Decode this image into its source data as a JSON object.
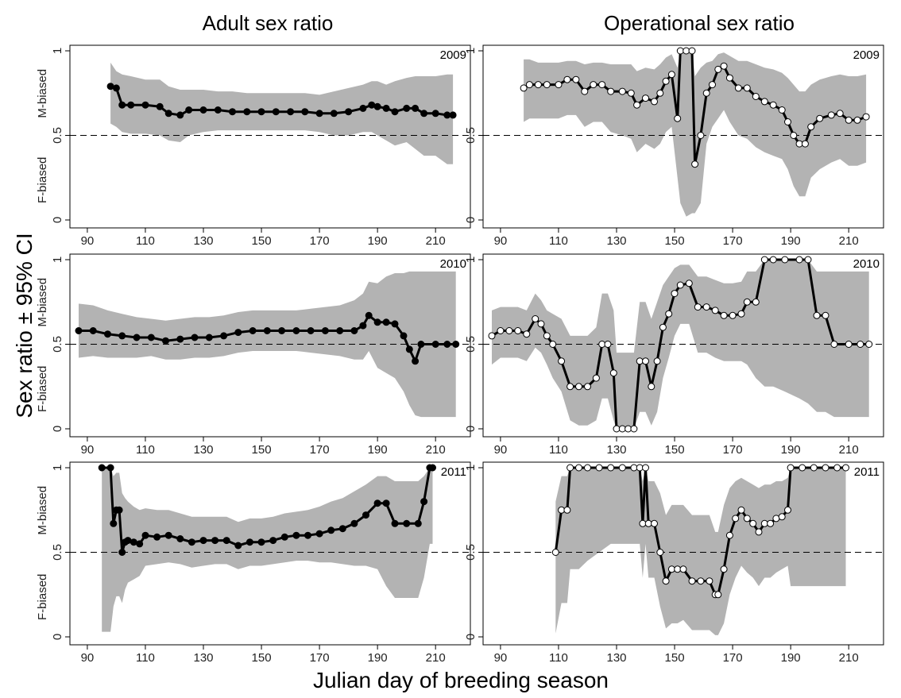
{
  "figure": {
    "col_titles": [
      "Adult sex ratio",
      "Operational sex ratio"
    ],
    "ylabel": "Sex ratio ± 95% CI",
    "xlabel": "Julian day of breeding season",
    "band_labels": {
      "upper": "M-biased",
      "lower": "F-biased"
    }
  },
  "chart_data": [
    {
      "type": "line",
      "panel": "asr-2009",
      "row": 0,
      "col": 0,
      "label": "2009",
      "xlim": [
        84,
        222
      ],
      "ylim": [
        0,
        1
      ],
      "reference_line": 0.5,
      "xticks": [
        90,
        110,
        130,
        150,
        170,
        190,
        210
      ],
      "yticks": [
        0,
        0.5,
        1
      ],
      "marker": "filled",
      "x": [
        98,
        100,
        102,
        105,
        110,
        115,
        118,
        122,
        125,
        130,
        135,
        140,
        145,
        150,
        155,
        160,
        165,
        170,
        175,
        180,
        185,
        188,
        190,
        193,
        196,
        200,
        203,
        206,
        210,
        214,
        216
      ],
      "y": [
        0.79,
        0.78,
        0.68,
        0.68,
        0.68,
        0.67,
        0.63,
        0.62,
        0.65,
        0.65,
        0.65,
        0.64,
        0.64,
        0.64,
        0.64,
        0.64,
        0.64,
        0.63,
        0.63,
        0.64,
        0.66,
        0.68,
        0.67,
        0.66,
        0.64,
        0.66,
        0.66,
        0.63,
        0.63,
        0.62,
        0.62
      ],
      "ci_upper": [
        0.93,
        0.88,
        0.86,
        0.85,
        0.83,
        0.83,
        0.79,
        0.77,
        0.77,
        0.77,
        0.76,
        0.76,
        0.75,
        0.75,
        0.75,
        0.75,
        0.75,
        0.74,
        0.76,
        0.78,
        0.8,
        0.82,
        0.82,
        0.8,
        0.82,
        0.84,
        0.85,
        0.85,
        0.85,
        0.86,
        0.86
      ],
      "ci_lower": [
        0.57,
        0.55,
        0.52,
        0.51,
        0.51,
        0.5,
        0.47,
        0.46,
        0.5,
        0.52,
        0.53,
        0.53,
        0.53,
        0.53,
        0.53,
        0.53,
        0.53,
        0.52,
        0.5,
        0.5,
        0.52,
        0.52,
        0.5,
        0.47,
        0.44,
        0.46,
        0.42,
        0.38,
        0.38,
        0.33,
        0.33
      ]
    },
    {
      "type": "line",
      "panel": "osr-2009",
      "row": 0,
      "col": 1,
      "label": "2009",
      "xlim": [
        84,
        222
      ],
      "ylim": [
        0,
        1
      ],
      "reference_line": 0.5,
      "xticks": [
        90,
        110,
        130,
        150,
        170,
        190,
        210
      ],
      "yticks": [
        0,
        0.5,
        1
      ],
      "marker": "open",
      "x": [
        98,
        100,
        103,
        106,
        110,
        113,
        116,
        119,
        122,
        125,
        128,
        132,
        135,
        137,
        140,
        143,
        145,
        147,
        149,
        151,
        152,
        154,
        156,
        157,
        159,
        161,
        163,
        165,
        167,
        169,
        172,
        175,
        178,
        181,
        184,
        187,
        189,
        191,
        193,
        195,
        197,
        200,
        204,
        207,
        210,
        213,
        216
      ],
      "y": [
        0.78,
        0.8,
        0.8,
        0.8,
        0.8,
        0.83,
        0.83,
        0.76,
        0.8,
        0.8,
        0.76,
        0.76,
        0.75,
        0.68,
        0.72,
        0.7,
        0.75,
        0.82,
        0.86,
        0.6,
        1.0,
        1.0,
        1.0,
        0.33,
        0.5,
        0.75,
        0.8,
        0.89,
        0.91,
        0.84,
        0.78,
        0.78,
        0.73,
        0.7,
        0.68,
        0.65,
        0.58,
        0.5,
        0.45,
        0.45,
        0.55,
        0.6,
        0.62,
        0.63,
        0.59,
        0.59,
        0.61
      ],
      "ci_upper": [
        0.95,
        0.95,
        0.93,
        0.93,
        0.93,
        0.94,
        0.94,
        0.92,
        0.93,
        0.93,
        0.92,
        0.92,
        0.92,
        0.88,
        0.9,
        0.89,
        0.92,
        0.96,
        0.98,
        0.9,
        1.0,
        1.0,
        1.0,
        0.85,
        0.9,
        0.93,
        0.94,
        0.98,
        0.99,
        0.97,
        0.94,
        0.94,
        0.92,
        0.9,
        0.89,
        0.87,
        0.84,
        0.8,
        0.76,
        0.76,
        0.8,
        0.83,
        0.85,
        0.86,
        0.85,
        0.85,
        0.86
      ],
      "ci_lower": [
        0.58,
        0.6,
        0.6,
        0.6,
        0.6,
        0.62,
        0.62,
        0.55,
        0.58,
        0.58,
        0.52,
        0.5,
        0.48,
        0.4,
        0.45,
        0.42,
        0.45,
        0.52,
        0.55,
        0.25,
        0.1,
        0.02,
        0.04,
        0.04,
        0.1,
        0.45,
        0.55,
        0.6,
        0.65,
        0.58,
        0.5,
        0.48,
        0.43,
        0.4,
        0.38,
        0.36,
        0.3,
        0.2,
        0.14,
        0.14,
        0.25,
        0.3,
        0.34,
        0.36,
        0.32,
        0.32,
        0.34
      ]
    },
    {
      "type": "line",
      "panel": "asr-2010",
      "row": 1,
      "col": 0,
      "label": "2010",
      "xlim": [
        84,
        222
      ],
      "ylim": [
        0,
        1
      ],
      "reference_line": 0.5,
      "xticks": [
        90,
        110,
        130,
        150,
        170,
        190,
        210
      ],
      "yticks": [
        0,
        0.5,
        1
      ],
      "marker": "filled",
      "x": [
        87,
        92,
        97,
        102,
        107,
        112,
        117,
        122,
        127,
        132,
        137,
        142,
        147,
        152,
        157,
        162,
        167,
        172,
        177,
        182,
        185,
        187,
        190,
        193,
        196,
        199,
        201,
        203,
        205,
        210,
        214,
        217
      ],
      "y": [
        0.58,
        0.58,
        0.56,
        0.55,
        0.54,
        0.54,
        0.52,
        0.53,
        0.54,
        0.54,
        0.55,
        0.57,
        0.58,
        0.58,
        0.58,
        0.58,
        0.58,
        0.58,
        0.58,
        0.58,
        0.61,
        0.67,
        0.63,
        0.63,
        0.62,
        0.55,
        0.47,
        0.4,
        0.5,
        0.5,
        0.5,
        0.5
      ],
      "ci_upper": [
        0.74,
        0.73,
        0.7,
        0.68,
        0.66,
        0.65,
        0.64,
        0.65,
        0.66,
        0.66,
        0.67,
        0.69,
        0.7,
        0.7,
        0.7,
        0.7,
        0.71,
        0.72,
        0.73,
        0.76,
        0.8,
        0.87,
        0.86,
        0.9,
        0.92,
        0.92,
        0.93,
        0.93,
        0.93,
        0.93,
        0.93,
        0.93
      ],
      "ci_lower": [
        0.42,
        0.43,
        0.42,
        0.42,
        0.42,
        0.43,
        0.41,
        0.41,
        0.42,
        0.42,
        0.43,
        0.45,
        0.46,
        0.46,
        0.46,
        0.46,
        0.45,
        0.44,
        0.43,
        0.41,
        0.41,
        0.46,
        0.36,
        0.33,
        0.3,
        0.22,
        0.14,
        0.08,
        0.07,
        0.07,
        0.07,
        0.07
      ],
      "ci_band_x": [
        87,
        92,
        97,
        102,
        107,
        112,
        117,
        122,
        127,
        132,
        137,
        142,
        147,
        152,
        157,
        162,
        167,
        172,
        177,
        182,
        185,
        187,
        190,
        193,
        196,
        199,
        201,
        203,
        205,
        210,
        214,
        217
      ]
    },
    {
      "type": "line",
      "panel": "osr-2010",
      "row": 1,
      "col": 1,
      "label": "2010",
      "xlim": [
        84,
        222
      ],
      "ylim": [
        0,
        1
      ],
      "reference_line": 0.5,
      "xticks": [
        90,
        110,
        130,
        150,
        170,
        190,
        210
      ],
      "yticks": [
        0,
        0.5,
        1
      ],
      "marker": "open",
      "x": [
        87,
        90,
        93,
        96,
        99,
        102,
        104,
        106,
        108,
        111,
        114,
        117,
        120,
        123,
        125,
        127,
        129,
        130,
        132,
        134,
        136,
        138,
        140,
        142,
        144,
        146,
        148,
        150,
        152,
        155,
        158,
        161,
        164,
        167,
        170,
        173,
        175,
        178,
        181,
        184,
        188,
        193,
        196,
        199,
        202,
        205,
        210,
        214,
        217
      ],
      "y": [
        0.55,
        0.58,
        0.58,
        0.58,
        0.56,
        0.65,
        0.62,
        0.55,
        0.5,
        0.4,
        0.25,
        0.25,
        0.25,
        0.3,
        0.5,
        0.5,
        0.33,
        0.0,
        0.0,
        0.0,
        0.0,
        0.4,
        0.4,
        0.25,
        0.4,
        0.6,
        0.68,
        0.8,
        0.85,
        0.86,
        0.72,
        0.72,
        0.7,
        0.67,
        0.67,
        0.68,
        0.75,
        0.75,
        1.0,
        1.0,
        1.0,
        1.0,
        1.0,
        0.67,
        0.67,
        0.5,
        0.5,
        0.5,
        0.5
      ],
      "ci_upper": [
        0.7,
        0.72,
        0.72,
        0.72,
        0.7,
        0.8,
        0.76,
        0.7,
        0.68,
        0.65,
        0.55,
        0.55,
        0.55,
        0.6,
        0.8,
        0.8,
        0.7,
        0.45,
        0.45,
        0.45,
        0.45,
        0.75,
        0.75,
        0.65,
        0.75,
        0.85,
        0.9,
        0.95,
        0.97,
        0.97,
        0.9,
        0.9,
        0.88,
        0.86,
        0.86,
        0.87,
        0.93,
        0.93,
        1.0,
        1.0,
        1.0,
        1.0,
        1.0,
        0.93,
        0.93,
        0.93,
        0.93,
        0.93,
        0.93
      ],
      "ci_lower": [
        0.38,
        0.42,
        0.42,
        0.42,
        0.4,
        0.48,
        0.45,
        0.38,
        0.3,
        0.22,
        0.05,
        0.02,
        0.02,
        0.05,
        0.18,
        0.18,
        0.05,
        0.0,
        0.0,
        0.0,
        0.0,
        0.1,
        0.1,
        0.02,
        0.1,
        0.3,
        0.42,
        0.55,
        0.62,
        0.62,
        0.45,
        0.45,
        0.42,
        0.4,
        0.4,
        0.4,
        0.38,
        0.3,
        0.25,
        0.25,
        0.22,
        0.18,
        0.15,
        0.1,
        0.1,
        0.07,
        0.07,
        0.07,
        0.07
      ]
    },
    {
      "type": "line",
      "panel": "asr-2011",
      "row": 2,
      "col": 0,
      "label": "2011",
      "xlim": [
        84,
        222
      ],
      "ylim": [
        0,
        1
      ],
      "reference_line": 0.5,
      "xticks": [
        90,
        110,
        130,
        150,
        170,
        190,
        210
      ],
      "yticks": [
        0,
        0.5,
        1
      ],
      "marker": "filled",
      "x": [
        95,
        98,
        99,
        100,
        101,
        102,
        103,
        104,
        106,
        108,
        110,
        114,
        118,
        122,
        126,
        130,
        134,
        138,
        142,
        146,
        150,
        154,
        158,
        162,
        166,
        170,
        174,
        178,
        182,
        186,
        190,
        193,
        196,
        200,
        204,
        206,
        208,
        209
      ],
      "y": [
        1.0,
        1.0,
        0.67,
        0.75,
        0.75,
        0.5,
        0.56,
        0.57,
        0.56,
        0.55,
        0.6,
        0.59,
        0.6,
        0.58,
        0.56,
        0.57,
        0.57,
        0.57,
        0.54,
        0.56,
        0.56,
        0.57,
        0.59,
        0.6,
        0.6,
        0.61,
        0.63,
        0.64,
        0.67,
        0.72,
        0.79,
        0.79,
        0.67,
        0.67,
        0.67,
        0.8,
        1.0,
        1.0
      ],
      "ci_upper": [
        1.0,
        1.0,
        0.95,
        0.97,
        0.97,
        0.85,
        0.82,
        0.8,
        0.77,
        0.75,
        0.76,
        0.75,
        0.75,
        0.73,
        0.71,
        0.71,
        0.71,
        0.71,
        0.68,
        0.7,
        0.7,
        0.71,
        0.73,
        0.74,
        0.75,
        0.77,
        0.8,
        0.82,
        0.86,
        0.9,
        0.95,
        0.95,
        0.92,
        0.92,
        0.92,
        0.95,
        1.0,
        1.0
      ],
      "ci_lower": [
        0.03,
        0.03,
        0.18,
        0.24,
        0.24,
        0.2,
        0.28,
        0.32,
        0.34,
        0.36,
        0.42,
        0.43,
        0.44,
        0.43,
        0.41,
        0.42,
        0.43,
        0.43,
        0.4,
        0.42,
        0.42,
        0.43,
        0.44,
        0.45,
        0.45,
        0.44,
        0.44,
        0.43,
        0.42,
        0.42,
        0.4,
        0.3,
        0.23,
        0.23,
        0.23,
        0.35,
        0.55,
        0.55
      ]
    },
    {
      "type": "line",
      "panel": "osr-2011",
      "row": 2,
      "col": 1,
      "label": "2011",
      "xlim": [
        84,
        222
      ],
      "ylim": [
        0,
        1
      ],
      "reference_line": 0.5,
      "xticks": [
        90,
        110,
        130,
        150,
        170,
        190,
        210
      ],
      "yticks": [
        0,
        0.5,
        1
      ],
      "marker": "open",
      "x": [
        109,
        111,
        113,
        114,
        117,
        120,
        124,
        128,
        132,
        136,
        138,
        139,
        140,
        141,
        143,
        145,
        147,
        149,
        151,
        153,
        156,
        159,
        162,
        164,
        165,
        167,
        169,
        171,
        173,
        175,
        177,
        179,
        181,
        183,
        185,
        187,
        189,
        190,
        194,
        198,
        202,
        206,
        209
      ],
      "y": [
        0.5,
        0.75,
        0.75,
        1.0,
        1.0,
        1.0,
        1.0,
        1.0,
        1.0,
        1.0,
        1.0,
        0.67,
        1.0,
        0.67,
        0.67,
        0.5,
        0.33,
        0.4,
        0.4,
        0.4,
        0.33,
        0.33,
        0.33,
        0.25,
        0.25,
        0.4,
        0.6,
        0.7,
        0.75,
        0.7,
        0.67,
        0.62,
        0.67,
        0.67,
        0.7,
        0.71,
        0.75,
        1.0,
        1.0,
        1.0,
        1.0,
        1.0,
        1.0
      ],
      "ci_upper": [
        0.8,
        0.95,
        0.95,
        1.0,
        1.0,
        1.0,
        1.0,
        1.0,
        1.0,
        1.0,
        1.0,
        0.92,
        1.0,
        0.92,
        0.92,
        0.85,
        0.72,
        0.78,
        0.78,
        0.78,
        0.72,
        0.72,
        0.72,
        0.62,
        0.62,
        0.78,
        0.88,
        0.92,
        0.94,
        0.92,
        0.9,
        0.88,
        0.9,
        0.9,
        0.92,
        0.92,
        0.94,
        1.0,
        1.0,
        1.0,
        1.0,
        1.0,
        1.0
      ],
      "ci_lower": [
        0.02,
        0.2,
        0.2,
        0.4,
        0.4,
        0.45,
        0.5,
        0.55,
        0.55,
        0.55,
        0.55,
        0.35,
        0.55,
        0.35,
        0.35,
        0.18,
        0.05,
        0.08,
        0.08,
        0.1,
        0.04,
        0.04,
        0.04,
        0.01,
        0.01,
        0.08,
        0.25,
        0.35,
        0.42,
        0.38,
        0.35,
        0.3,
        0.35,
        0.35,
        0.38,
        0.4,
        0.42,
        0.3,
        0.3,
        0.3,
        0.3,
        0.3,
        0.3
      ]
    }
  ]
}
